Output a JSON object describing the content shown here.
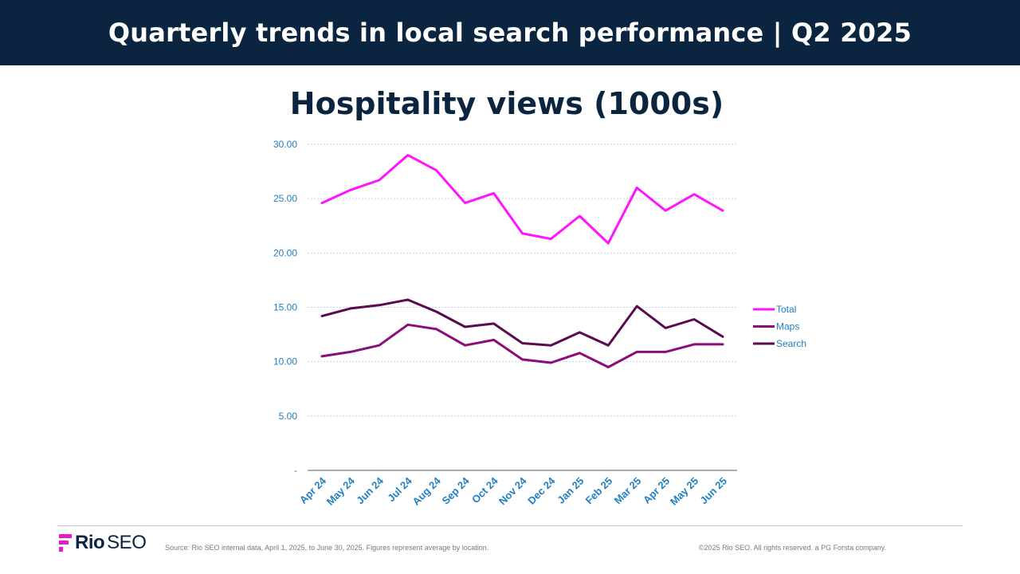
{
  "header": {
    "title": "Quarterly trends in local search performance  |  Q2 2025"
  },
  "chart_data": {
    "type": "line",
    "title": "Hospitality views (1000s)",
    "categories": [
      "Apr 24",
      "May 24",
      "Jun 24",
      "Jul 24",
      "Aug 24",
      "Sep 24",
      "Oct 24",
      "Nov 24",
      "Dec 24",
      "Jan 25",
      "Feb 25",
      "Mar 25",
      "Apr 25",
      "May 25",
      "Jun 25"
    ],
    "series": [
      {
        "name": "Total",
        "color": "#ff14ff",
        "values": [
          24.6,
          25.8,
          26.7,
          29.0,
          27.6,
          24.6,
          25.5,
          21.8,
          21.3,
          23.4,
          20.9,
          26.0,
          23.9,
          25.4,
          23.9
        ]
      },
      {
        "name": "Maps",
        "color": "#8b0c7a",
        "values": [
          10.5,
          10.9,
          11.5,
          13.4,
          13.0,
          11.5,
          12.0,
          10.2,
          9.9,
          10.8,
          9.5,
          10.9,
          10.9,
          11.6,
          11.6
        ]
      },
      {
        "name": "Search",
        "color": "#5a0a4e",
        "values": [
          14.2,
          14.9,
          15.2,
          15.7,
          14.6,
          13.2,
          13.5,
          11.7,
          11.5,
          12.7,
          11.5,
          15.1,
          13.1,
          13.9,
          12.3
        ]
      }
    ],
    "y_ticks": [
      "-",
      "5.00",
      "10.00",
      "15.00",
      "20.00",
      "25.00",
      "30.00"
    ],
    "ylim": [
      0,
      30
    ],
    "grid": true,
    "legend_position": "right"
  },
  "footer": {
    "logo_rio": "Rio",
    "logo_seo": "SEO",
    "source": "Source: Rio SEO internal data, April 1, 2025, to June 30, 2025. Figures represent average by location.",
    "copyright": "©2025 Rio SEO. All rights reserved. a PG Forsta company."
  }
}
